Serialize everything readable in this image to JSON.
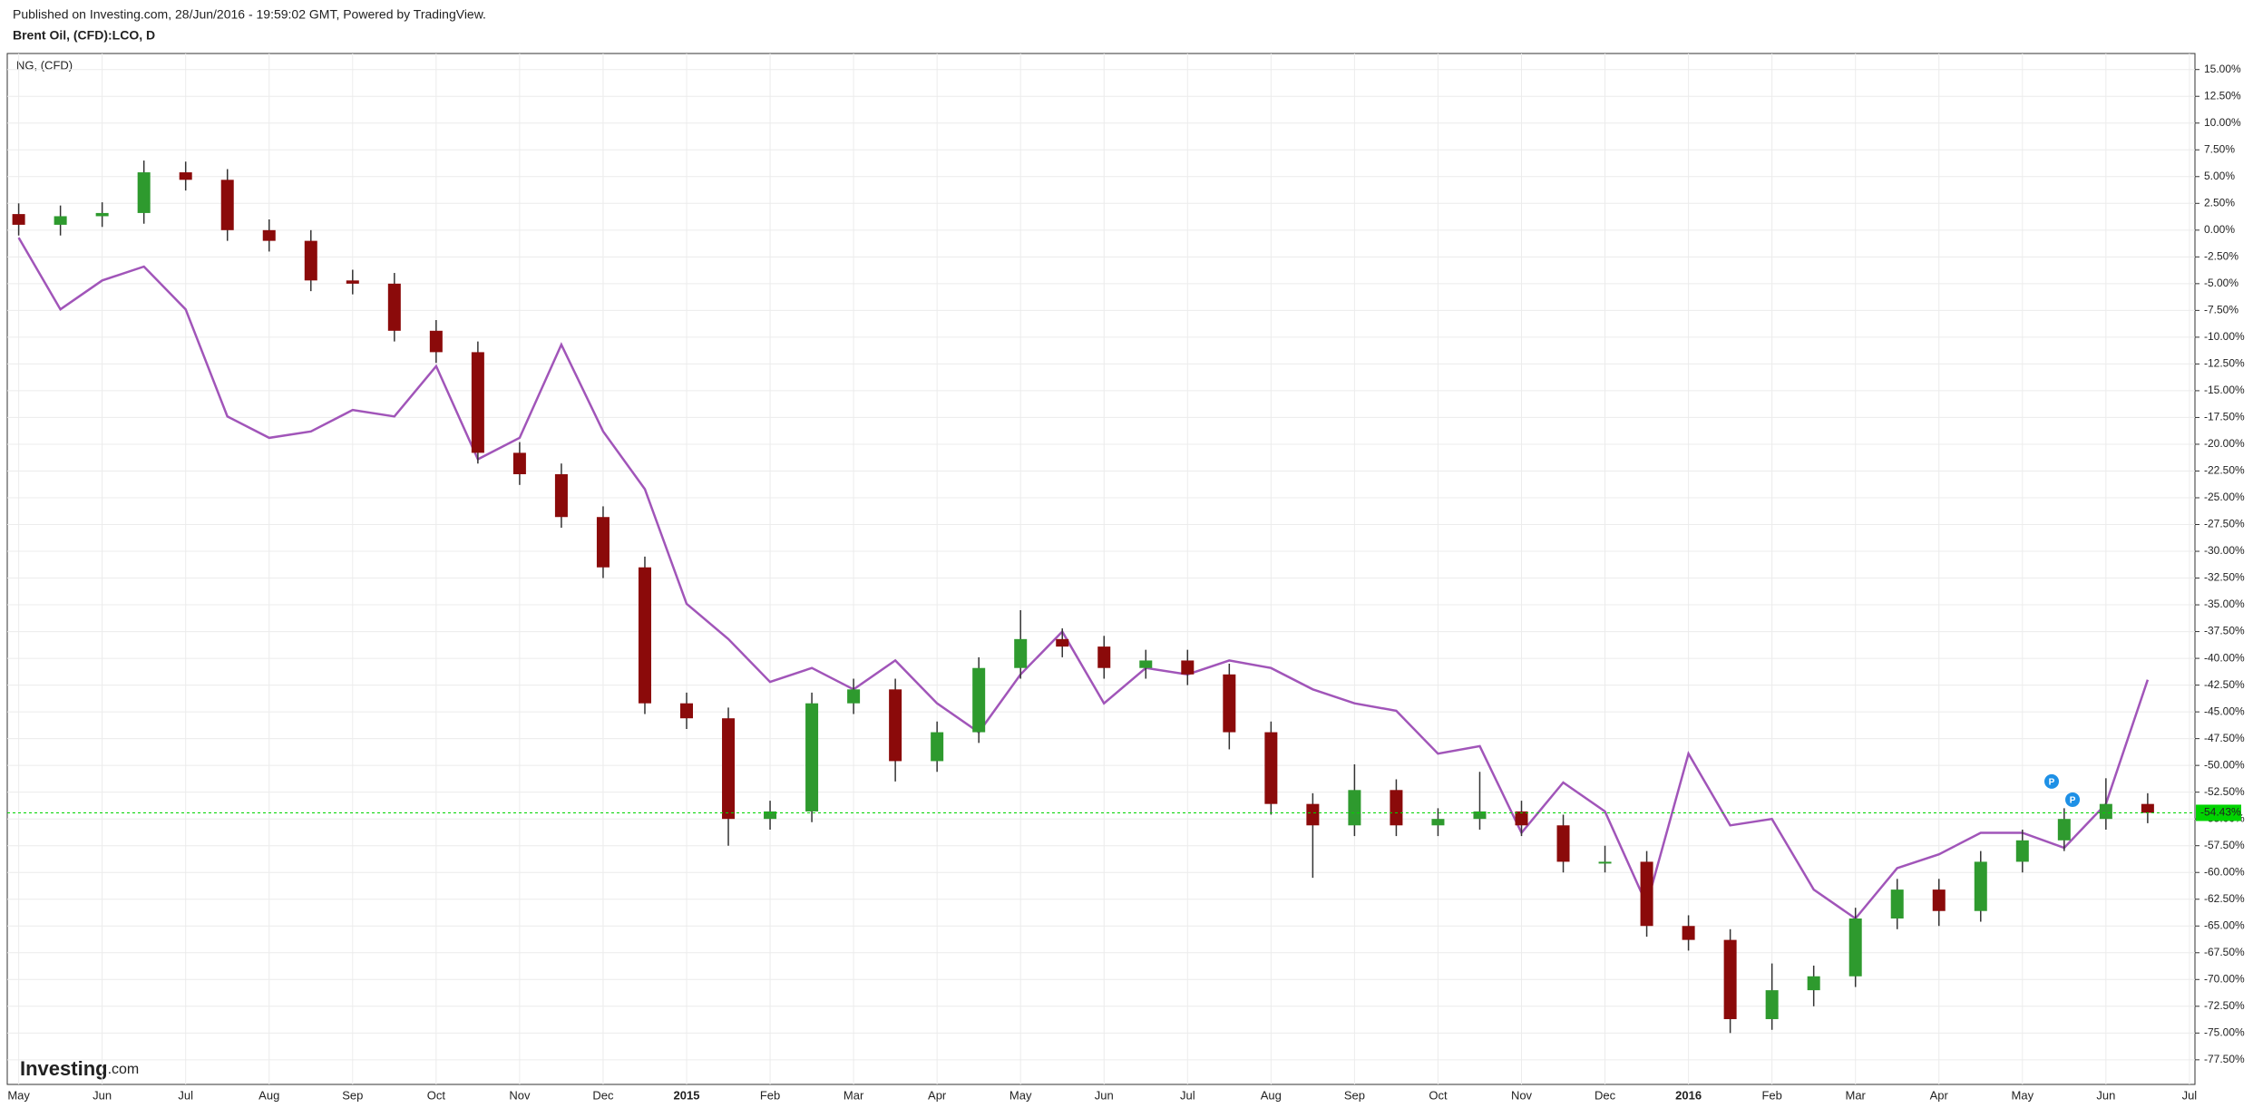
{
  "header": {
    "published": "Published on Investing.com, 28/Jun/2016 - 19:59:02 GMT, Powered by TradingView.",
    "symbol": "Brent Oil, (CFD):LCO, D"
  },
  "watermark": {
    "brand": "Investing",
    "suffix": ".com"
  },
  "chart_data": {
    "type": "candlestick",
    "x_labels": [
      "May",
      "Jun",
      "Jul",
      "Aug",
      "Sep",
      "Oct",
      "Nov",
      "Dec",
      "2015",
      "Feb",
      "Mar",
      "Apr",
      "May",
      "Jun",
      "Jul",
      "Aug",
      "Sep",
      "Oct",
      "Nov",
      "Dec",
      "2016",
      "Feb",
      "Mar",
      "Apr",
      "May",
      "Jun",
      "Jul"
    ],
    "ylim": [
      -79.8,
      16.5
    ],
    "yticks": [
      {
        "value": 15,
        "label": "15.00%"
      },
      {
        "value": 12.5,
        "label": "12.50%"
      },
      {
        "value": 10,
        "label": "10.00%"
      },
      {
        "value": 7.5,
        "label": "7.50%"
      },
      {
        "value": 5,
        "label": "5.00%"
      },
      {
        "value": 2.5,
        "label": "2.50%"
      },
      {
        "value": 0,
        "label": "0.00%"
      },
      {
        "value": -2.5,
        "label": "-2.50%"
      },
      {
        "value": -5,
        "label": "-5.00%"
      },
      {
        "value": -7.5,
        "label": "-7.50%"
      },
      {
        "value": -10,
        "label": "-10.00%"
      },
      {
        "value": -12.5,
        "label": "-12.50%"
      },
      {
        "value": -15,
        "label": "-15.00%"
      },
      {
        "value": -17.5,
        "label": "-17.50%"
      },
      {
        "value": -20,
        "label": "-20.00%"
      },
      {
        "value": -22.5,
        "label": "-22.50%"
      },
      {
        "value": -25,
        "label": "-25.00%"
      },
      {
        "value": -27.5,
        "label": "-27.50%"
      },
      {
        "value": -30,
        "label": "-30.00%"
      },
      {
        "value": -32.5,
        "label": "-32.50%"
      },
      {
        "value": -35,
        "label": "-35.00%"
      },
      {
        "value": -37.5,
        "label": "-37.50%"
      },
      {
        "value": -40,
        "label": "-40.00%"
      },
      {
        "value": -42.5,
        "label": "-42.50%"
      },
      {
        "value": -45,
        "label": "-45.00%"
      },
      {
        "value": -47.5,
        "label": "-47.50%"
      },
      {
        "value": -50,
        "label": "-50.00%"
      },
      {
        "value": -52.5,
        "label": "-52.50%"
      },
      {
        "value": -55,
        "label": "-55.00%"
      },
      {
        "value": -57.5,
        "label": "-57.50%"
      },
      {
        "value": -60,
        "label": "-60.00%"
      },
      {
        "value": -62.5,
        "label": "-62.50%"
      },
      {
        "value": -65,
        "label": "-65.00%"
      },
      {
        "value": -67.5,
        "label": "-67.50%"
      },
      {
        "value": -70,
        "label": "-70.00%"
      },
      {
        "value": -72.5,
        "label": "-72.50%"
      },
      {
        "value": -75,
        "label": "-75.00%"
      },
      {
        "value": -77.5,
        "label": "-77.50%"
      }
    ],
    "grid": true,
    "up_color": "#2e9a2e",
    "down_color": "#8b0a0a",
    "open": [
      1.5,
      0.5,
      1.3,
      1.6,
      5.4,
      4.7,
      0,
      -1,
      -4.7,
      -5,
      -9.4,
      -11.4,
      -20.8,
      -22.8,
      -26.8,
      -31.5,
      -44.2,
      -45.6,
      -55,
      -54.3,
      -44.2,
      -42.9,
      -49.6,
      -46.9,
      -40.9,
      -38.2,
      -38.9,
      -40.9,
      -40.2,
      -41.5,
      -46.9,
      -53.6,
      -55.6,
      -52.3,
      -55.6,
      -55,
      -54.3,
      -55.6,
      -59,
      -59,
      -65,
      -66.3,
      -73.7,
      -71,
      -69.7,
      -64.3,
      -61.6,
      -63.6,
      -59,
      -57,
      -55,
      -53.6
    ],
    "high": [
      2.5,
      2.3,
      2.6,
      6.5,
      6.4,
      5.7,
      1,
      0,
      -3.7,
      -4,
      -8.4,
      -10.4,
      -19.8,
      -21.8,
      -25.8,
      -30.5,
      -43.2,
      -44.6,
      -53.3,
      -43.2,
      -41.9,
      -41.9,
      -45.9,
      -39.9,
      -35.5,
      -37.2,
      -37.9,
      -39.2,
      -39.2,
      -40.5,
      -45.9,
      -52.6,
      -49.9,
      -51.3,
      -54,
      -50.6,
      -53.3,
      -54.6,
      -57.5,
      -58,
      -64,
      -65.3,
      -68.5,
      -68.7,
      -63.3,
      -60.6,
      -60.6,
      -58,
      -56,
      -54,
      -51.2,
      -52.6
    ],
    "low": [
      -0.5,
      -0.5,
      0.3,
      0.6,
      3.7,
      -1,
      -2,
      -5.7,
      -6,
      -10.4,
      -12.4,
      -21.8,
      -23.8,
      -27.8,
      -32.5,
      -45.2,
      -46.6,
      -57.5,
      -56,
      -55.3,
      -45.2,
      -51.5,
      -50.6,
      -47.9,
      -41.9,
      -39.9,
      -41.9,
      -41.9,
      -42.5,
      -48.5,
      -54.6,
      -60.5,
      -56.6,
      -56.6,
      -56.6,
      -56,
      -56.6,
      -60,
      -60,
      -66,
      -67.3,
      -75,
      -74.7,
      -72.5,
      -70.7,
      -65.3,
      -65,
      -64.6,
      -60,
      -58,
      -56,
      -55.4
    ],
    "close": [
      0.5,
      1.3,
      1.6,
      5.4,
      4.7,
      0,
      -1,
      -4.7,
      -5,
      -9.4,
      -11.4,
      -20.8,
      -22.8,
      -26.8,
      -31.5,
      -44.2,
      -45.6,
      -55,
      -54.3,
      -44.2,
      -42.9,
      -49.6,
      -46.9,
      -40.9,
      -38.2,
      -38.9,
      -40.9,
      -40.2,
      -41.5,
      -46.9,
      -53.6,
      -55.6,
      -52.3,
      -55.6,
      -55,
      -54.3,
      -55.6,
      -59,
      -59,
      -65,
      -66.3,
      -73.7,
      -71,
      -69.7,
      -64.3,
      -61.6,
      -63.6,
      -59,
      -57,
      -55,
      -53.6,
      -54.43
    ],
    "last_price": {
      "value": -54.43,
      "label": "-54.43%"
    },
    "last_price_color": "#00d400",
    "compare": {
      "name": "NG,  (CFD)",
      "color": "#a155b9",
      "values": [
        -0.7,
        -7.4,
        -4.7,
        -3.4,
        -7.4,
        -17.4,
        -19.4,
        -18.8,
        -16.8,
        -17.4,
        -12.7,
        -21.4,
        -19.4,
        -10.7,
        -18.8,
        -24.2,
        -34.9,
        -38.2,
        -42.2,
        -40.9,
        -42.9,
        -40.2,
        -44.2,
        -46.9,
        -41.5,
        -37.5,
        -44.2,
        -40.9,
        -41.5,
        -40.2,
        -40.9,
        -42.9,
        -44.2,
        -44.9,
        -48.9,
        -48.2,
        -56.3,
        -51.6,
        -54.3,
        -63,
        -48.9,
        -55.6,
        -55,
        -61.6,
        -64.3,
        -59.6,
        -58.3,
        -56.3,
        -56.3,
        -57.7,
        -53.6,
        -42
      ]
    },
    "event_markers": [
      "P",
      "P"
    ]
  }
}
